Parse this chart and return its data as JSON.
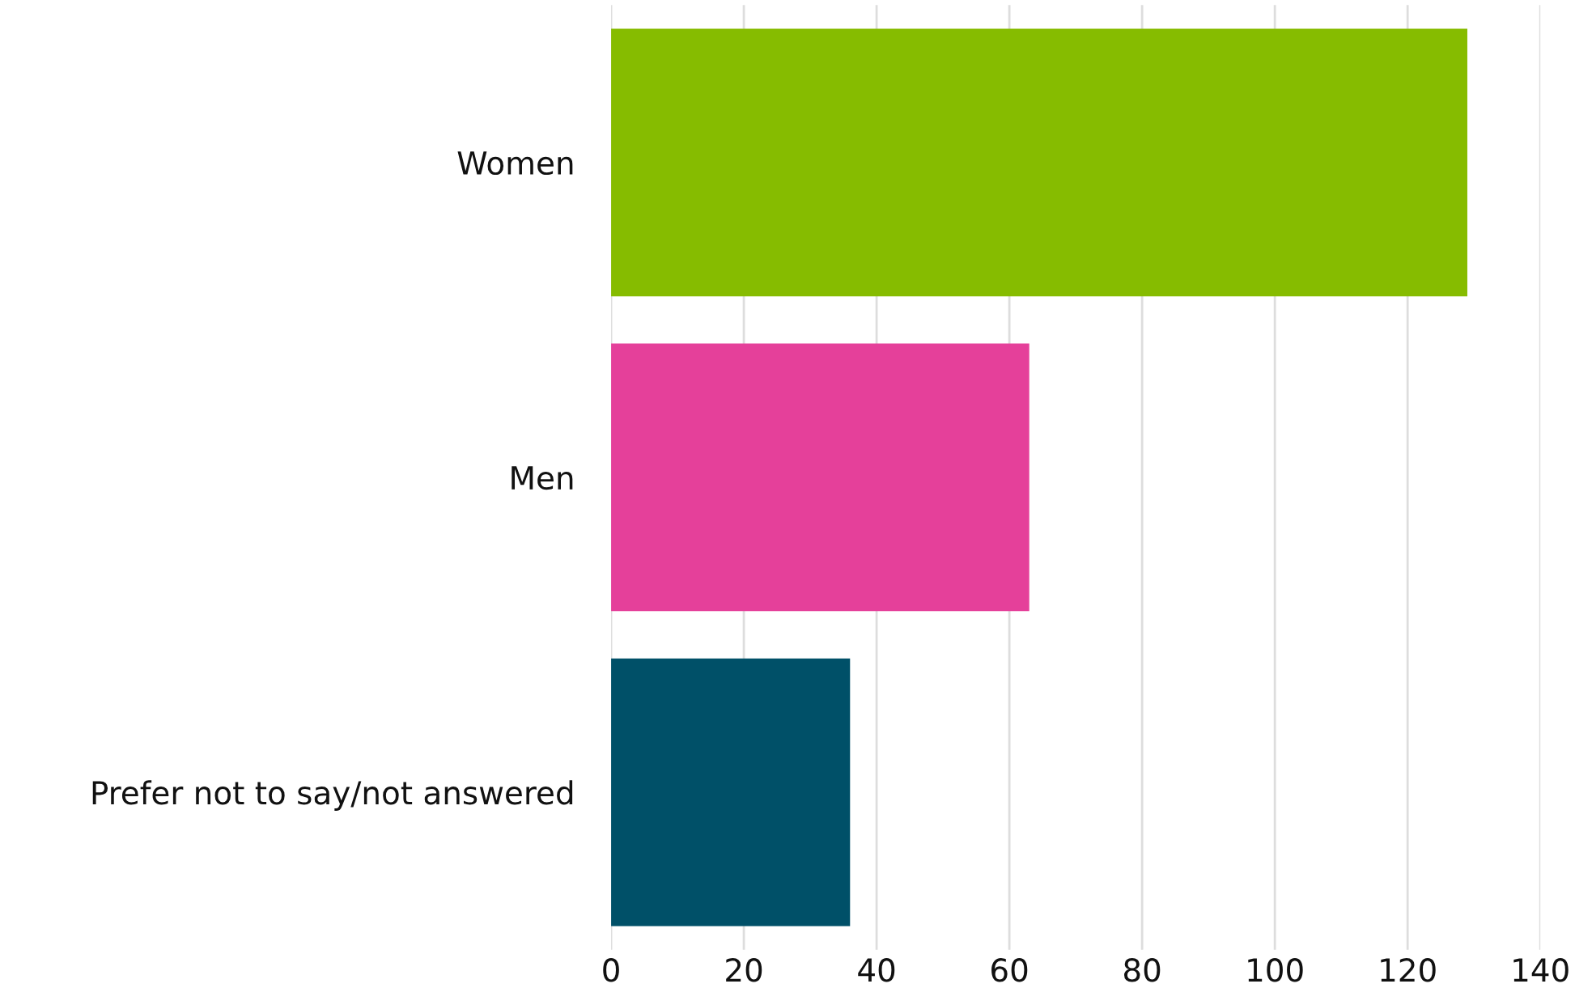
{
  "chart_data": {
    "type": "bar",
    "orientation": "horizontal",
    "categories": [
      "Women",
      "Men",
      "Prefer not to say/not answered"
    ],
    "values": [
      129,
      63,
      36
    ],
    "colors": [
      "#86bc00",
      "#e5409a",
      "#005068"
    ],
    "xlim": [
      0,
      140
    ],
    "xticks": [
      0,
      20,
      40,
      60,
      80,
      100,
      120,
      140
    ],
    "grid": "x",
    "legend": false
  }
}
